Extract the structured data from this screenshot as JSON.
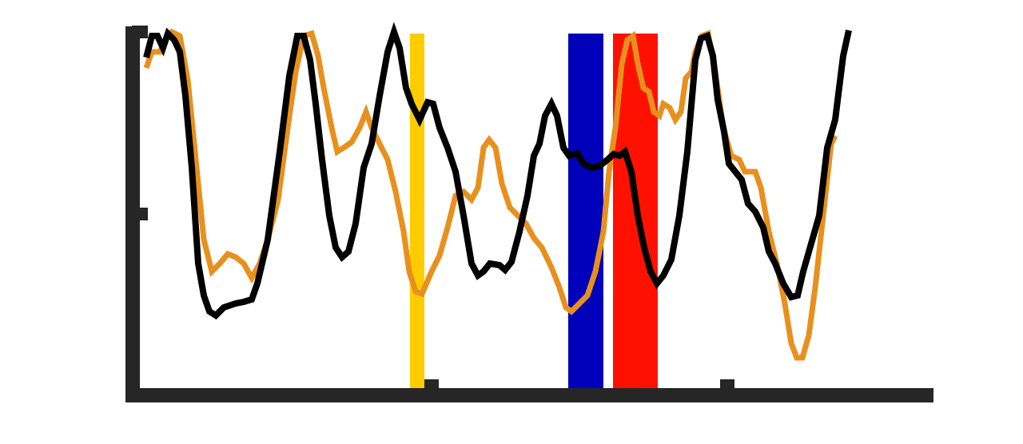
{
  "chart_data": {
    "type": "line",
    "xlim": [
      0,
      1003
    ],
    "xticks": [
      375,
      745
    ],
    "ylim": [
      0,
      462
    ],
    "yticks": [
      227,
      455
    ],
    "axis_color": "#262626",
    "spans": [
      {
        "color": "#ffcc00",
        "x": [
          348,
          366
        ],
        "y": [
          0,
          453
        ]
      },
      {
        "color": "#0000bb",
        "x": [
          546,
          590
        ],
        "y": [
          0,
          453
        ]
      },
      {
        "color": "#ff1100",
        "x": [
          602,
          658
        ],
        "y": [
          0,
          453
        ]
      }
    ],
    "series": [
      {
        "color": "#e8901e",
        "x": [
          18,
          25,
          35,
          43,
          50,
          60,
          70,
          80,
          90,
          100,
          110,
          120,
          130,
          140,
          150,
          160,
          170,
          183,
          195,
          205,
          215,
          225,
          233,
          240,
          250,
          257,
          265,
          275,
          285,
          293,
          300,
          310,
          320,
          330,
          340,
          347,
          355,
          363,
          375,
          385,
          395,
          405,
          415,
          425,
          433,
          440,
          447,
          455,
          463,
          473,
          483,
          493,
          503,
          513,
          525,
          535,
          543,
          550,
          560,
          570,
          580,
          590,
          597,
          605,
          613,
          620,
          627,
          633,
          640,
          647,
          653,
          660,
          665,
          673,
          680,
          687,
          693,
          700,
          705,
          713,
          721,
          730,
          740,
          750,
          760,
          767,
          780,
          787,
          797,
          807,
          817,
          825,
          832,
          839,
          847,
          855,
          865,
          875,
          880
        ],
        "values": [
          410,
          430,
          430,
          447,
          455,
          450,
          395,
          295,
          195,
          155,
          165,
          177,
          173,
          165,
          147,
          165,
          195,
          245,
          335,
          405,
          450,
          453,
          425,
          385,
          335,
          305,
          310,
          317,
          335,
          355,
          335,
          315,
          295,
          255,
          205,
          155,
          130,
          127,
          155,
          175,
          210,
          250,
          255,
          245,
          260,
          310,
          320,
          310,
          265,
          235,
          225,
          215,
          197,
          185,
          160,
          135,
          110,
          105,
          115,
          125,
          155,
          205,
          280,
          335,
          415,
          445,
          450,
          415,
          385,
          380,
          355,
          350,
          365,
          360,
          345,
          355,
          397,
          405,
          430,
          450,
          453,
          405,
          335,
          300,
          295,
          280,
          280,
          260,
          205,
          165,
          115,
          65,
          47,
          47,
          75,
          135,
          225,
          315,
          325
        ]
      },
      {
        "color": "#000000",
        "x": [
          18,
          25,
          32,
          39,
          45,
          53,
          60,
          67,
          75,
          83,
          90,
          97,
          105,
          115,
          130,
          140,
          150,
          157,
          170,
          185,
          197,
          207,
          215,
          223,
          230,
          238,
          247,
          255,
          263,
          271,
          280,
          290,
          300,
          310,
          320,
          328,
          335,
          343,
          350,
          360,
          370,
          377,
          385,
          395,
          405,
          415,
          425,
          433,
          440,
          448,
          460,
          467,
          475,
          485,
          495,
          503,
          510,
          517,
          525,
          532,
          540,
          547,
          557,
          565,
          575,
          585,
          595,
          603,
          610,
          617,
          625,
          633,
          641,
          649,
          657,
          665,
          675,
          685,
          695,
          705,
          712,
          720,
          727,
          733,
          741,
          747,
          755,
          763,
          771,
          780,
          790,
          797,
          805,
          815,
          825,
          833,
          840,
          850,
          860,
          870,
          880,
          890,
          897
        ],
        "values": [
          423,
          450,
          450,
          435,
          453,
          445,
          430,
          375,
          285,
          165,
          125,
          105,
          100,
          110,
          115,
          117,
          120,
          140,
          195,
          305,
          400,
          450,
          450,
          420,
          365,
          295,
          225,
          185,
          173,
          180,
          215,
          285,
          315,
          375,
          430,
          455,
          435,
          385,
          365,
          345,
          367,
          365,
          335,
          310,
          280,
          225,
          165,
          150,
          155,
          165,
          163,
          157,
          167,
          205,
          250,
          300,
          315,
          350,
          365,
          350,
          310,
          300,
          303,
          290,
          285,
          287,
          295,
          302,
          300,
          305,
          280,
          225,
          185,
          155,
          140,
          150,
          170,
          225,
          305,
          420,
          447,
          450,
          425,
          370,
          330,
          290,
          280,
          270,
          240,
          230,
          210,
          180,
          165,
          140,
          123,
          125,
          155,
          190,
          225,
          310,
          345,
          425,
          457
        ]
      }
    ]
  }
}
